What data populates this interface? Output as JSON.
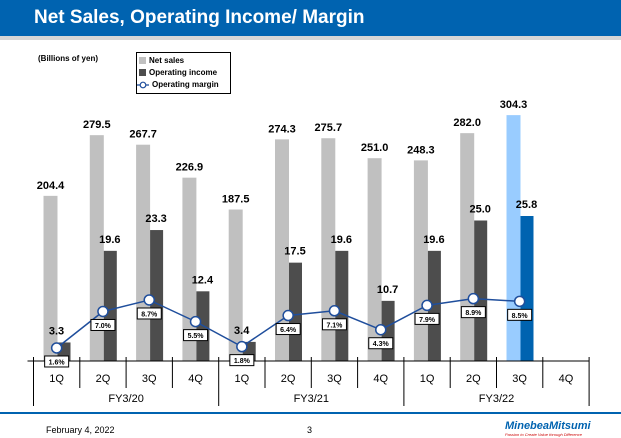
{
  "header": {
    "title": "Net Sales, Operating Income/ Margin"
  },
  "footer": {
    "date": "February 4, 2022",
    "page": "3",
    "logo": "MinebeaMitsumi",
    "tagline": "Passion to Create Value through Difference"
  },
  "chart_data": {
    "type": "bar",
    "unit_label": "(Billions of yen)",
    "categories": [
      "1Q",
      "2Q",
      "3Q",
      "4Q",
      "1Q",
      "2Q",
      "3Q",
      "4Q",
      "1Q",
      "2Q",
      "3Q",
      "4Q"
    ],
    "groups": [
      {
        "label": "FY3/20",
        "span": 4
      },
      {
        "label": "FY3/21",
        "span": 4
      },
      {
        "label": "FY3/22",
        "span": 4
      }
    ],
    "series": [
      {
        "name": "Net sales",
        "type": "bar",
        "color": "#c0c0c0",
        "highlight_color": "#99ccff",
        "values": [
          204.4,
          279.5,
          267.7,
          226.9,
          187.5,
          274.3,
          275.7,
          251.0,
          248.3,
          282.0,
          304.3,
          null
        ]
      },
      {
        "name": "Operating income",
        "type": "bar",
        "color": "#4d4d4d",
        "highlight_color": "#0063b0",
        "values": [
          3.3,
          19.6,
          23.3,
          12.4,
          3.4,
          17.5,
          19.6,
          10.7,
          19.6,
          25.0,
          25.8,
          null
        ]
      },
      {
        "name": "Operating margin",
        "type": "line",
        "color": "#1f4e9c",
        "unit": "%",
        "values": [
          1.6,
          7.0,
          8.7,
          5.5,
          1.8,
          6.4,
          7.1,
          4.3,
          7.9,
          8.9,
          8.5,
          null
        ]
      }
    ],
    "highlight_index": 10,
    "legend_placement": "top-left",
    "grid": false
  }
}
